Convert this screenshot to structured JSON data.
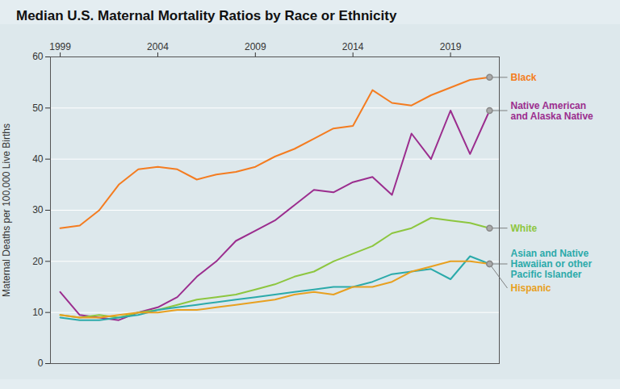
{
  "chart_data": {
    "type": "line",
    "title": "Median U.S. Maternal Mortality Ratios by Race or Ethnicity",
    "ylabel": "Maternal Deaths per 100,000 Live Births",
    "x": [
      1999,
      2000,
      2001,
      2002,
      2003,
      2004,
      2005,
      2006,
      2007,
      2008,
      2009,
      2010,
      2011,
      2012,
      2013,
      2014,
      2015,
      2016,
      2017,
      2018,
      2019,
      2020,
      2021
    ],
    "series": [
      {
        "name": "Black",
        "color": "#f47c20",
        "values": [
          26.5,
          27.0,
          30.0,
          35.0,
          38.0,
          38.5,
          38.0,
          36.0,
          37.0,
          37.5,
          38.5,
          40.5,
          42.0,
          44.0,
          46.0,
          46.5,
          53.5,
          51.0,
          50.5,
          52.5,
          54.0,
          55.5,
          56.0
        ]
      },
      {
        "name": "Native American\nand Alaska Native",
        "color": "#9b2d8e",
        "values": [
          14.0,
          9.5,
          9.0,
          8.5,
          10.0,
          11.0,
          13.0,
          17.0,
          20.0,
          24.0,
          26.0,
          28.0,
          31.0,
          34.0,
          33.5,
          35.5,
          36.5,
          33.0,
          45.0,
          40.0,
          49.5,
          41.0,
          49.5
        ]
      },
      {
        "name": "White",
        "color": "#8dc63f",
        "values": [
          9.5,
          9.0,
          9.5,
          9.0,
          10.0,
          10.5,
          11.5,
          12.5,
          13.0,
          13.5,
          14.5,
          15.5,
          17.0,
          18.0,
          20.0,
          21.5,
          23.0,
          25.5,
          26.5,
          28.5,
          28.0,
          27.5,
          26.5
        ]
      },
      {
        "name": "Asian and Native\nHawaiian or other\nPacific Islander",
        "color": "#2baaaa",
        "values": [
          9.0,
          8.5,
          8.5,
          9.0,
          9.5,
          10.5,
          11.0,
          11.5,
          12.0,
          12.5,
          13.0,
          13.5,
          14.0,
          14.5,
          15.0,
          15.0,
          16.0,
          17.5,
          18.0,
          18.5,
          16.5,
          21.0,
          19.5
        ]
      },
      {
        "name": "Hispanic",
        "color": "#e8a020",
        "values": [
          9.5,
          9.0,
          9.0,
          9.5,
          10.0,
          10.0,
          10.5,
          10.5,
          11.0,
          11.5,
          12.0,
          12.5,
          13.5,
          14.0,
          13.5,
          15.0,
          15.0,
          16.0,
          18.0,
          19.0,
          20.0,
          20.0,
          19.5
        ]
      }
    ],
    "xlim": [
      1998.5,
      2021.5
    ],
    "xticks": [
      1999,
      2004,
      2009,
      2014,
      2019
    ],
    "ylim": [
      0,
      60
    ],
    "yticks": [
      0,
      10,
      20,
      30,
      40,
      50,
      60
    ],
    "grid": true
  }
}
